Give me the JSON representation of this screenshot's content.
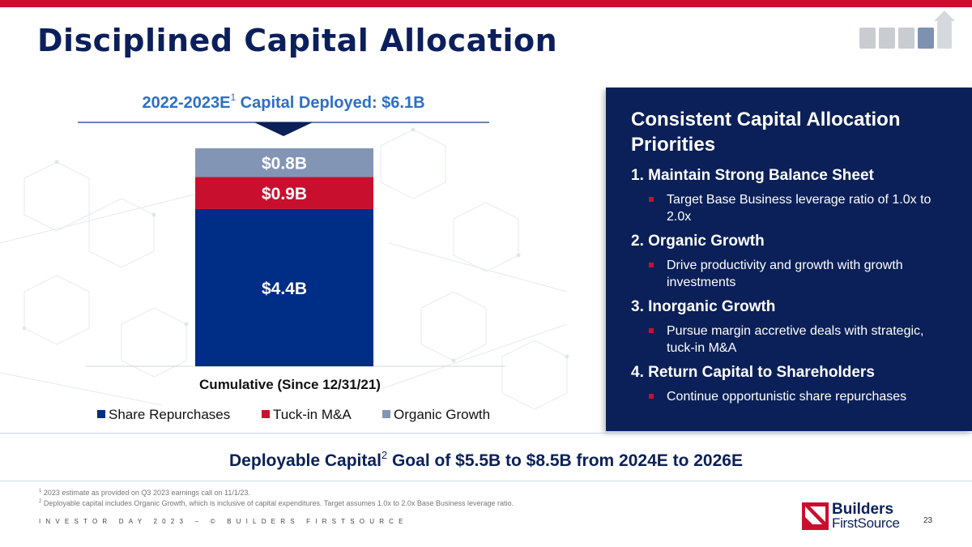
{
  "page": {
    "title": "Disciplined Capital Allocation"
  },
  "chart_header": {
    "title_prefix": "2022-2023E",
    "footnote_ref": "1",
    "title_suffix": " Capital Deployed: $6.1B"
  },
  "chart_data": {
    "type": "bar",
    "stacked": true,
    "title": "2022-2023E Capital Deployed: $6.1B",
    "categories": [
      "Cumulative (Since 12/31/21)"
    ],
    "series": [
      {
        "name": "Share Repurchases",
        "values": [
          4.4
        ],
        "label": "$4.4B",
        "color": "#002d86"
      },
      {
        "name": "Tuck-in M&A",
        "values": [
          0.9
        ],
        "label": "$0.9B",
        "color": "#c8102e"
      },
      {
        "name": "Organic Growth",
        "values": [
          0.8
        ],
        "label": "$0.8B",
        "color": "#8395b4"
      }
    ],
    "ylim": [
      0,
      6.1
    ],
    "legend_position": "bottom",
    "xlabel": "",
    "ylabel": ""
  },
  "panel": {
    "heading": "Consistent Capital Allocation Priorities",
    "priorities": [
      {
        "title": "1. Maintain Strong Balance Sheet",
        "bullet": "Target Base Business leverage ratio of 1.0x to 2.0x"
      },
      {
        "title": "2. Organic Growth",
        "bullet": "Drive productivity and growth with growth investments"
      },
      {
        "title": "3. Inorganic Growth",
        "bullet": "Pursue margin accretive deals with strategic, tuck-in M&A"
      },
      {
        "title": "4. Return Capital to Shareholders",
        "bullet": "Continue opportunistic share repurchases"
      }
    ]
  },
  "goal": {
    "prefix": "Deployable Capital",
    "footnote_ref": "2",
    "suffix": " Goal of $5.5B to $8.5B from 2024E to 2026E"
  },
  "footnotes": [
    {
      "num": "1",
      "text": "2023 estimate as provided on Q3 2023 earnings call on 11/1/23."
    },
    {
      "num": "2",
      "text": "Deployable capital includes Organic Growth, which is inclusive of capital expenditures. Target assumes 1.0x to 2.0x Base Business leverage ratio."
    }
  ],
  "footer": {
    "text": "INVESTOR DAY 2023 – © BUILDERS FIRSTSOURCE",
    "page_number": "23"
  },
  "logo": {
    "line1": "Builders",
    "line2": "FirstSource"
  },
  "colors": {
    "brand_red": "#c8102e",
    "brand_navy": "#0b2058",
    "accent_blue": "#2e6fc4"
  }
}
